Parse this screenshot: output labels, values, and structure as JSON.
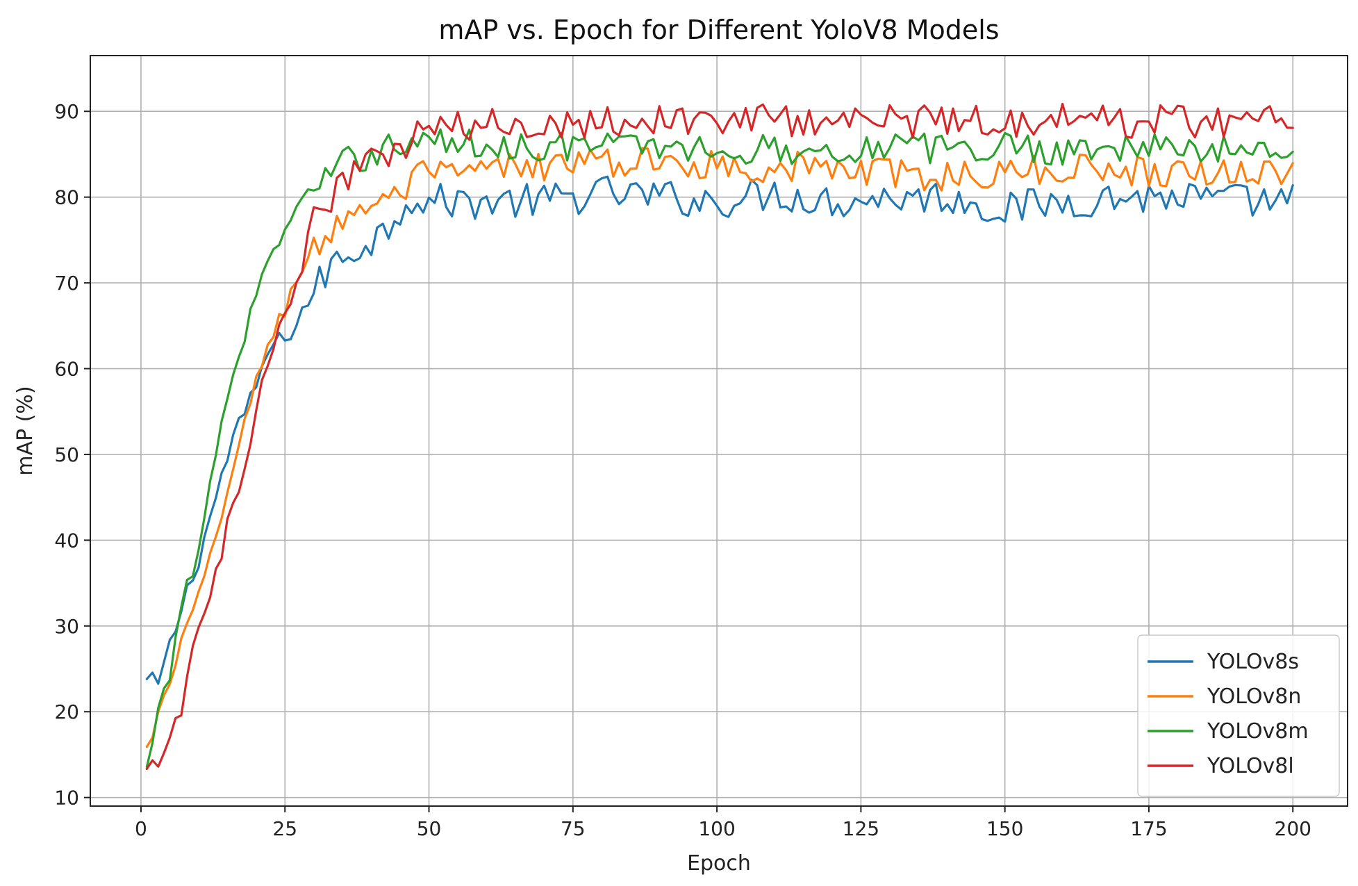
{
  "chart_data": {
    "type": "line",
    "title": "mAP vs. Epoch for Different YoloV8 Models",
    "xlabel": "Epoch",
    "ylabel": "mAP (%)",
    "xlim": [
      -8.8,
      209.5
    ],
    "ylim": [
      9.0,
      96.5
    ],
    "xticks": [
      0,
      25,
      50,
      75,
      100,
      125,
      150,
      175,
      200
    ],
    "yticks": [
      10,
      20,
      30,
      40,
      50,
      60,
      70,
      80,
      90
    ],
    "xtick_labels": [
      "0",
      "25",
      "50",
      "75",
      "100",
      "125",
      "150",
      "175",
      "200"
    ],
    "ytick_labels": [
      "10",
      "20",
      "30",
      "40",
      "50",
      "60",
      "70",
      "80",
      "90"
    ],
    "grid": true,
    "legend_position": "bottom-right",
    "x_start": 1,
    "x_end": 200,
    "series": [
      {
        "name": "YOLOv8s",
        "color": "#1f77b4",
        "keypoints": [
          [
            1,
            23.5
          ],
          [
            3,
            23.2
          ],
          [
            5,
            27.5
          ],
          [
            7,
            32
          ],
          [
            10,
            38
          ],
          [
            13,
            45
          ],
          [
            16,
            52
          ],
          [
            19,
            56
          ],
          [
            22,
            62
          ],
          [
            25,
            63.5
          ],
          [
            27,
            65.5
          ],
          [
            30,
            69
          ],
          [
            33,
            72
          ],
          [
            36,
            73.5
          ],
          [
            40,
            75
          ],
          [
            43,
            76.5
          ],
          [
            46,
            80
          ],
          [
            50,
            79.5
          ],
          [
            60,
            79.5
          ],
          [
            70,
            79.5
          ],
          [
            80,
            80.5
          ],
          [
            90,
            80
          ],
          [
            100,
            79.5
          ],
          [
            110,
            80.5
          ],
          [
            120,
            79.5
          ],
          [
            130,
            80
          ],
          [
            140,
            80
          ],
          [
            150,
            78.5
          ],
          [
            160,
            79.5
          ],
          [
            170,
            80
          ],
          [
            180,
            80
          ],
          [
            190,
            79.5
          ],
          [
            200,
            79.5
          ]
        ],
        "noise": 1.5
      },
      {
        "name": "YOLOv8n",
        "color": "#ff7f0e",
        "keypoints": [
          [
            1,
            15.5
          ],
          [
            3,
            19.5
          ],
          [
            5,
            23
          ],
          [
            7,
            28
          ],
          [
            10,
            33
          ],
          [
            13,
            41
          ],
          [
            16,
            48
          ],
          [
            19,
            56
          ],
          [
            22,
            63
          ],
          [
            25,
            67
          ],
          [
            28,
            72
          ],
          [
            31,
            74.5
          ],
          [
            35,
            77.5
          ],
          [
            40,
            79.5
          ],
          [
            45,
            80
          ],
          [
            48,
            82.5
          ],
          [
            55,
            82.5
          ],
          [
            65,
            83.5
          ],
          [
            75,
            84
          ],
          [
            85,
            84
          ],
          [
            95,
            84
          ],
          [
            105,
            83.5
          ],
          [
            115,
            83.5
          ],
          [
            125,
            83
          ],
          [
            135,
            82.5
          ],
          [
            145,
            82.5
          ],
          [
            155,
            83
          ],
          [
            165,
            83.5
          ],
          [
            175,
            83
          ],
          [
            185,
            83
          ],
          [
            195,
            83
          ],
          [
            200,
            83
          ]
        ],
        "noise": 1.3
      },
      {
        "name": "YOLOv8m",
        "color": "#2ca02c",
        "keypoints": [
          [
            1,
            13
          ],
          [
            3,
            19.5
          ],
          [
            5,
            24
          ],
          [
            7,
            33
          ],
          [
            10,
            38
          ],
          [
            13,
            51
          ],
          [
            16,
            59
          ],
          [
            19,
            66
          ],
          [
            21,
            72
          ],
          [
            24,
            74
          ],
          [
            27,
            79
          ],
          [
            30,
            81
          ],
          [
            33,
            82
          ],
          [
            36,
            84.5
          ],
          [
            40,
            85
          ],
          [
            45,
            86.5
          ],
          [
            50,
            86.5
          ],
          [
            60,
            86
          ],
          [
            70,
            86
          ],
          [
            80,
            86
          ],
          [
            90,
            86
          ],
          [
            100,
            85.5
          ],
          [
            110,
            85.5
          ],
          [
            120,
            85.5
          ],
          [
            130,
            86
          ],
          [
            140,
            85.5
          ],
          [
            150,
            86
          ],
          [
            160,
            85.5
          ],
          [
            170,
            86
          ],
          [
            180,
            85.5
          ],
          [
            190,
            85.5
          ],
          [
            200,
            85
          ]
        ],
        "noise": 1.3
      },
      {
        "name": "YOLOv8l",
        "color": "#d62728",
        "keypoints": [
          [
            1,
            12.5
          ],
          [
            3,
            14.5
          ],
          [
            5,
            18
          ],
          [
            7,
            19.5
          ],
          [
            9,
            27
          ],
          [
            12,
            33
          ],
          [
            15,
            42
          ],
          [
            18,
            48
          ],
          [
            21,
            58
          ],
          [
            24,
            65
          ],
          [
            27,
            70
          ],
          [
            30,
            77
          ],
          [
            33,
            80
          ],
          [
            36,
            82.5
          ],
          [
            40,
            84
          ],
          [
            44,
            85
          ],
          [
            48,
            87.5
          ],
          [
            55,
            88
          ],
          [
            65,
            88.5
          ],
          [
            75,
            89
          ],
          [
            85,
            89
          ],
          [
            95,
            89
          ],
          [
            105,
            89
          ],
          [
            115,
            89
          ],
          [
            125,
            89
          ],
          [
            135,
            89
          ],
          [
            145,
            89
          ],
          [
            155,
            89
          ],
          [
            165,
            89
          ],
          [
            175,
            89
          ],
          [
            185,
            89
          ],
          [
            195,
            89
          ],
          [
            200,
            88.5
          ]
        ],
        "noise": 1.5
      }
    ]
  }
}
